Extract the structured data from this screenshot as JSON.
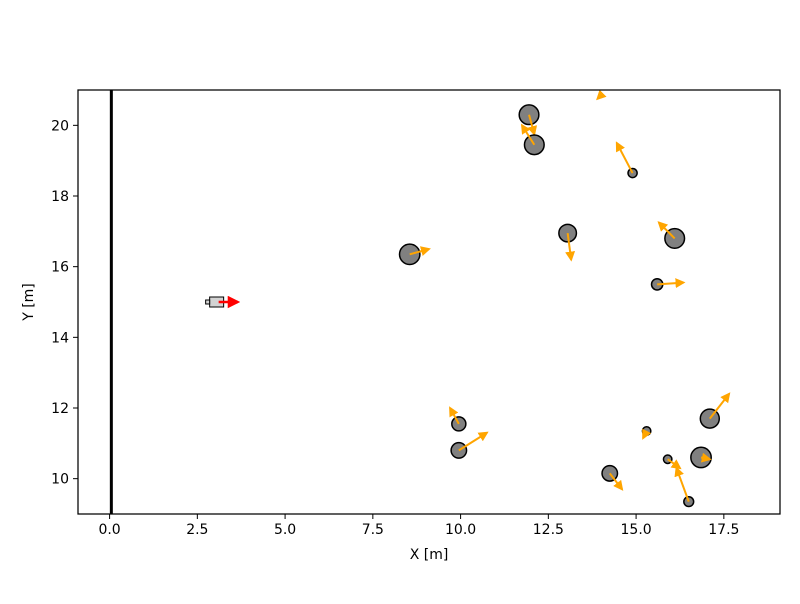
{
  "chart_data": {
    "type": "scatter",
    "title": "",
    "xlabel": "X [m]",
    "ylabel": "Y [m]",
    "xlim": [
      -0.9,
      19.1
    ],
    "ylim": [
      9.0,
      21.0
    ],
    "xticks": [
      0.0,
      2.5,
      5.0,
      7.5,
      10.0,
      12.5,
      15.0,
      17.5
    ],
    "xtick_labels": [
      "0.0",
      "2.5",
      "5.0",
      "7.5",
      "10.0",
      "12.5",
      "15.0",
      "17.5"
    ],
    "yticks": [
      10,
      12,
      14,
      16,
      18,
      20
    ],
    "ytick_labels": [
      "10",
      "12",
      "14",
      "16",
      "18",
      "20"
    ],
    "grid": false,
    "wall": {
      "x": 0.05
    },
    "robot": {
      "x": 3.05,
      "y": 15.0,
      "heading": [
        0.6,
        0.0
      ]
    },
    "colors": {
      "obstacle_fill": "#808080",
      "obstacle_edge": "#000000",
      "velocity_arrow": "#FFA500",
      "robot_arrow": "#FF0000",
      "robot_fill": "#d3d3d3",
      "wall": "#000000"
    },
    "obstacles": [
      {
        "x": 11.95,
        "y": 20.3,
        "r": 0.28,
        "vx": 0.15,
        "vy": -0.55
      },
      {
        "x": 12.1,
        "y": 19.45,
        "r": 0.28,
        "vx": -0.35,
        "vy": 0.55
      },
      {
        "x": 14.05,
        "y": 20.9,
        "r": 0.0,
        "vx": -0.15,
        "vy": -0.15
      },
      {
        "x": 14.9,
        "y": 18.65,
        "r": 0.13,
        "vx": -0.45,
        "vy": 0.85
      },
      {
        "x": 13.05,
        "y": 16.95,
        "r": 0.25,
        "vx": 0.1,
        "vy": -0.75
      },
      {
        "x": 16.1,
        "y": 16.8,
        "r": 0.28,
        "vx": -0.45,
        "vy": 0.45
      },
      {
        "x": 15.6,
        "y": 15.5,
        "r": 0.16,
        "vx": 0.75,
        "vy": 0.05
      },
      {
        "x": 8.55,
        "y": 16.35,
        "r": 0.29,
        "vx": 0.55,
        "vy": 0.15
      },
      {
        "x": 9.95,
        "y": 11.55,
        "r": 0.2,
        "vx": -0.25,
        "vy": 0.45
      },
      {
        "x": 9.95,
        "y": 10.8,
        "r": 0.22,
        "vx": 0.8,
        "vy": 0.5
      },
      {
        "x": 14.25,
        "y": 10.15,
        "r": 0.22,
        "vx": 0.35,
        "vy": -0.45
      },
      {
        "x": 15.3,
        "y": 11.35,
        "r": 0.12,
        "vx": -0.1,
        "vy": -0.2
      },
      {
        "x": 15.9,
        "y": 10.55,
        "r": 0.12,
        "vx": 0.35,
        "vy": -0.25
      },
      {
        "x": 16.5,
        "y": 9.35,
        "r": 0.14,
        "vx": -0.35,
        "vy": 0.95
      },
      {
        "x": 16.85,
        "y": 10.6,
        "r": 0.29,
        "vx": 0.25,
        "vy": -0.05
      },
      {
        "x": 17.1,
        "y": 11.7,
        "r": 0.27,
        "vx": 0.55,
        "vy": 0.7
      }
    ]
  }
}
